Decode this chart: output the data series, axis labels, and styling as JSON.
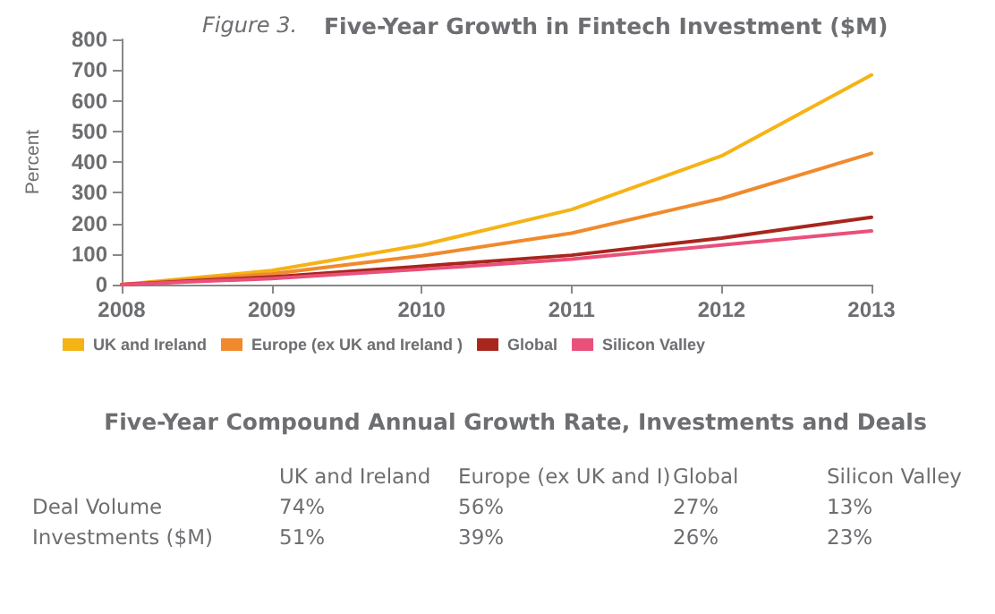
{
  "chart_data": {
    "type": "line",
    "subtitle": "Figure 3.",
    "title": "Five-Year Growth in Fintech Investment ($M)",
    "ylabel": "Percent",
    "categories": [
      "2008",
      "2009",
      "2010",
      "2011",
      "2012",
      "2013"
    ],
    "series": [
      {
        "name": "UK and Ireland",
        "color": "#f5b316",
        "values": [
          0,
          46,
          129,
          245,
          420,
          684
        ]
      },
      {
        "name": "Europe (ex UK and Ireland )",
        "color": "#f08a2c",
        "values": [
          0,
          35,
          94,
          168,
          281,
          428
        ]
      },
      {
        "name": "Global",
        "color": "#a8261d",
        "values": [
          0,
          25,
          60,
          96,
          152,
          220
        ]
      },
      {
        "name": "Silicon Valley",
        "color": "#e9507a",
        "values": [
          0,
          20,
          50,
          83,
          129,
          175
        ]
      }
    ],
    "ylim": [
      0,
      800
    ],
    "yticks": [
      0,
      100,
      200,
      300,
      400,
      500,
      600,
      700,
      800
    ],
    "grid": false,
    "legend": "bottom",
    "marker": "none",
    "line_style": "solid",
    "annotations": [
      "Five-Year Compound Annual Growth Rate, Investments and Deals",
      "UK and Ireland",
      "Europe (ex UK and I)",
      "Global",
      "Silicon Valley",
      "Deal Volume",
      "74%",
      "56%",
      "27%",
      "13%",
      "Investments ($M)",
      "51%",
      "39%",
      "26%",
      "23%"
    ]
  }
}
